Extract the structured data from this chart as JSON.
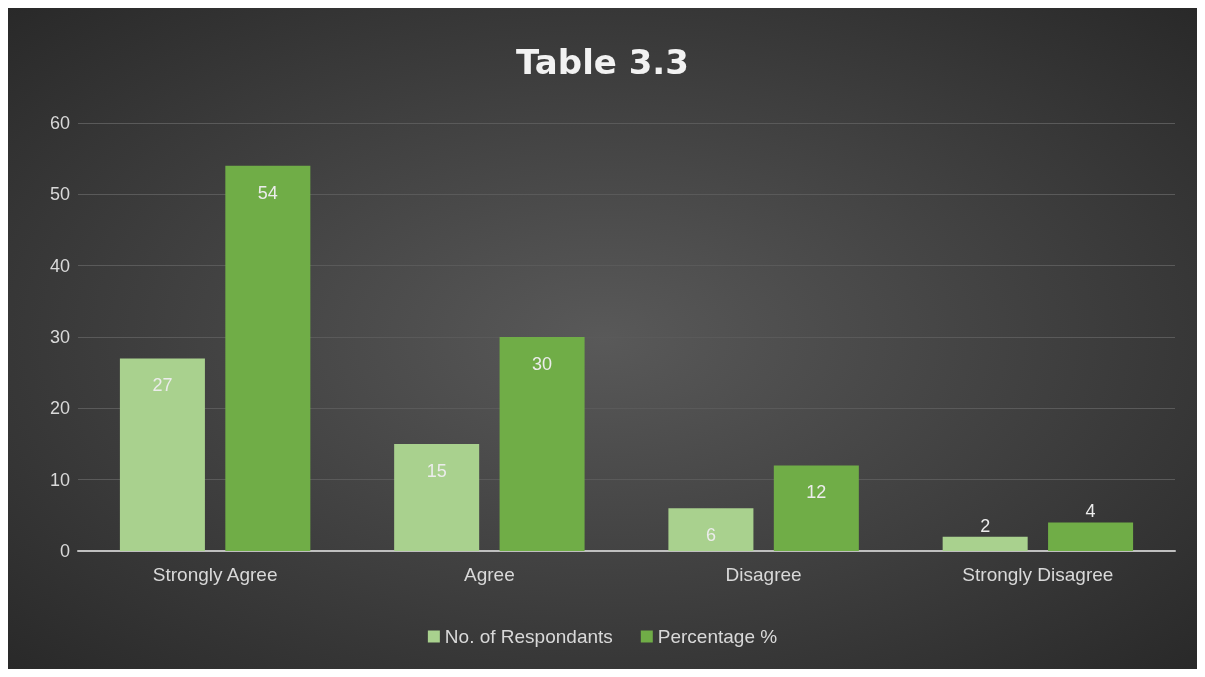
{
  "chart_data": {
    "type": "bar",
    "title": "Table 3.3",
    "categories": [
      "Strongly Agree",
      "Agree",
      "Disagree",
      "Strongly Disagree"
    ],
    "series": [
      {
        "name": "No. of Respondants",
        "color": "#a9d18e",
        "values": [
          27,
          15,
          6,
          2
        ]
      },
      {
        "name": "Percentage %",
        "color": "#70ad47",
        "values": [
          54,
          30,
          12,
          4
        ]
      }
    ],
    "ylim": [
      0,
      60
    ],
    "yticks": [
      0,
      10,
      20,
      30,
      40,
      50,
      60
    ],
    "grid": "y",
    "legend": "bottom",
    "data_labels": true
  }
}
